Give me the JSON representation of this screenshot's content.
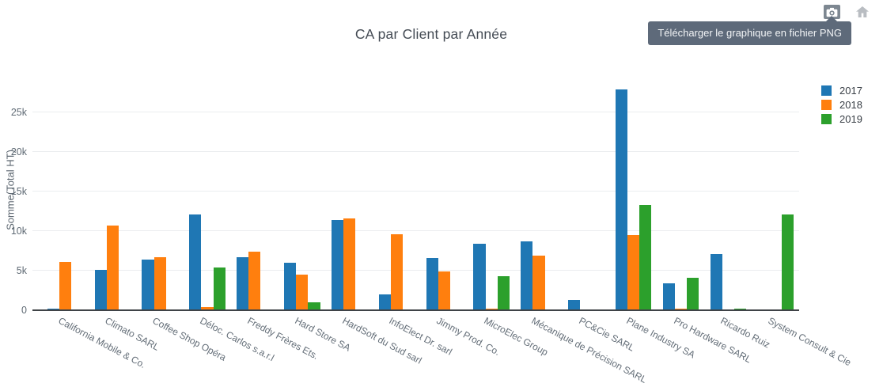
{
  "modebar": {
    "tooltip": "Télécharger le graphique en fichier PNG",
    "buttons": [
      {
        "name": "download-png",
        "icon": "camera-icon"
      },
      {
        "name": "reset-view",
        "icon": "home-icon"
      }
    ]
  },
  "chart_data": {
    "type": "bar",
    "title": "CA par Client par Année",
    "xlabel": "",
    "ylabel": "Somme(Total HT)",
    "legend_position": "right",
    "grid": true,
    "ylim": [
      0,
      29700
    ],
    "yticks": {
      "values": [
        0,
        5000,
        10000,
        15000,
        20000,
        25000
      ],
      "labels": [
        "0",
        "5k",
        "10k",
        "15k",
        "20k",
        "25k"
      ]
    },
    "categories": [
      "California Mobile & Co.",
      "Climato SARL",
      "Coffee Shop Opéra",
      "Déloc. Carlos s.a.r.l",
      "Freddy Frères Ets.",
      "Hard Store SA",
      "HardSoft du Sud sarl",
      "InfoElect Dr. sarl",
      "Jimmy Prod. Co.",
      "MicroElec Group",
      "Mécanique de Précision SARL",
      "PC&Cie SARL",
      "Plane Industry SA",
      "Pro Hardware SARL",
      "Ricardo Ruiz",
      "System Consult & Cie"
    ],
    "series": [
      {
        "name": "2017",
        "color": "#1f77b4",
        "values": [
          150,
          5050,
          6350,
          12000,
          6650,
          5900,
          11350,
          1900,
          6550,
          8300,
          8600,
          1200,
          27800,
          3300,
          7050,
          null
        ]
      },
      {
        "name": "2018",
        "color": "#ff7f0e",
        "values": [
          6050,
          10650,
          6650,
          300,
          7300,
          4450,
          11500,
          9550,
          4800,
          100,
          6800,
          null,
          9450,
          150,
          null,
          null
        ]
      },
      {
        "name": "2019",
        "color": "#2ca02c",
        "values": [
          null,
          null,
          null,
          5300,
          null,
          900,
          null,
          null,
          null,
          4200,
          null,
          null,
          13250,
          4000,
          150,
          12000
        ]
      }
    ]
  }
}
